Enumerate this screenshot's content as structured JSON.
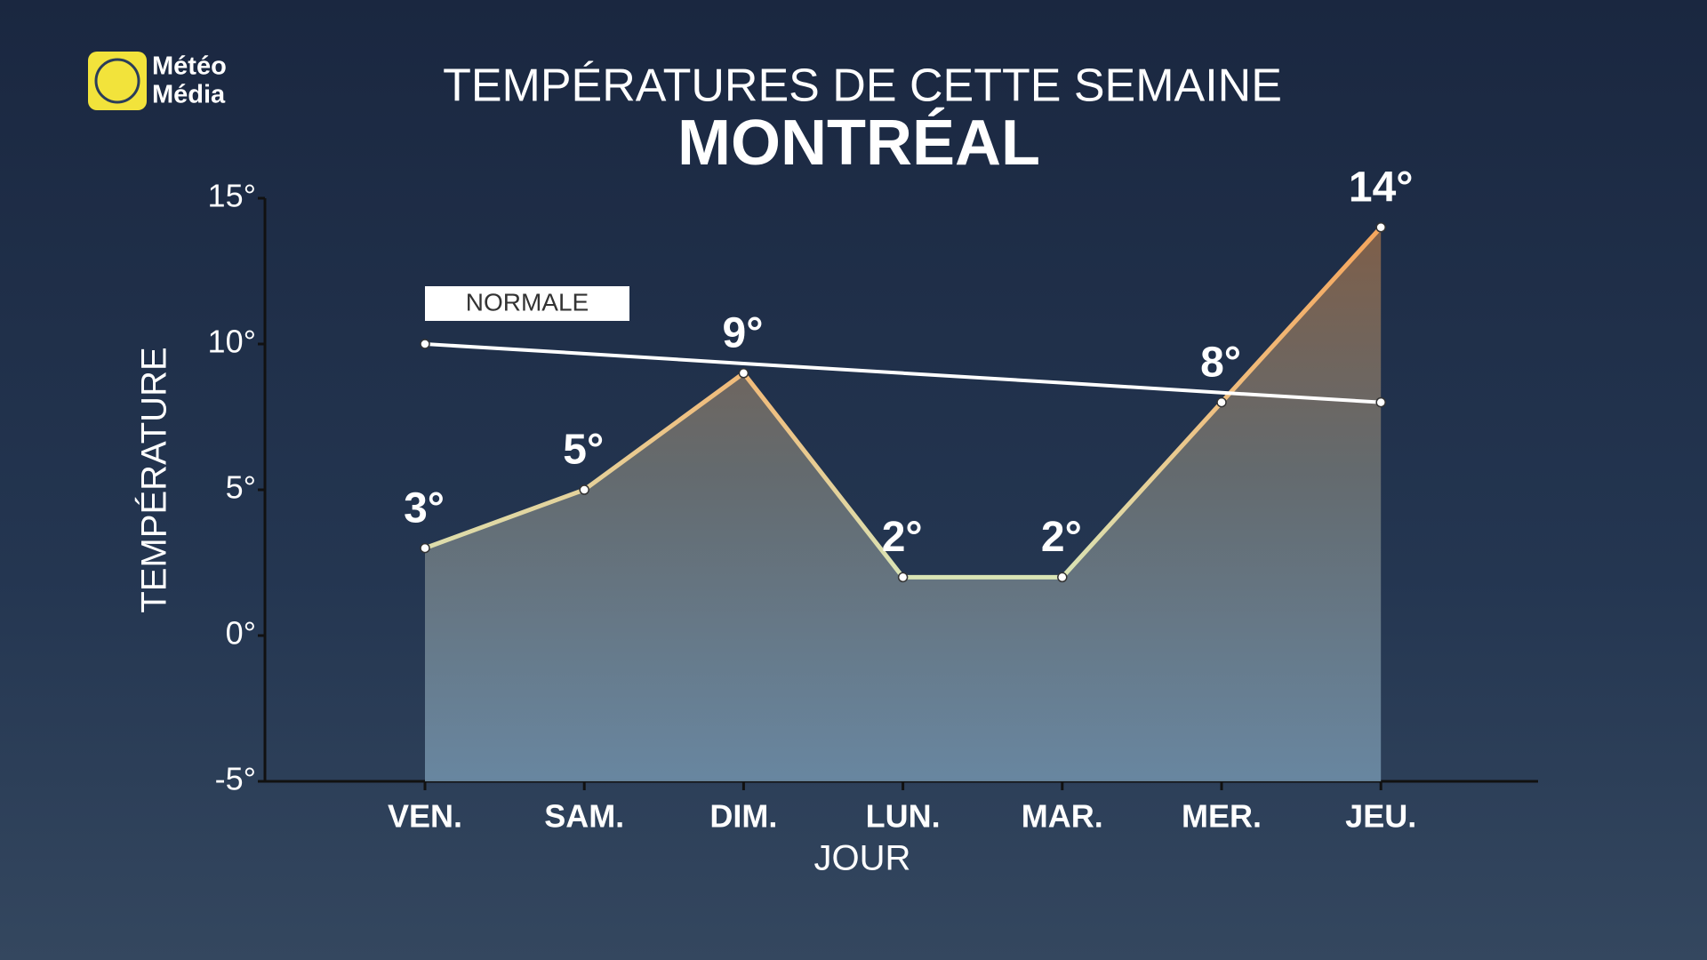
{
  "logo": {
    "lines": [
      "Météo",
      "Média"
    ]
  },
  "chart_data": {
    "type": "line",
    "title": "TEMPÉRATURES DE CETTE SEMAINE",
    "subtitle": "MONTRÉAL",
    "x_label": "JOUR",
    "y_label": "TEMPÉRATURE",
    "categories": [
      "VEN.",
      "SAM.",
      "DIM.",
      "LUN.",
      "MAR.",
      "MER.",
      "JEU."
    ],
    "series": [
      {
        "values": [
          3,
          5,
          9,
          2,
          2,
          8,
          14
        ],
        "value_labels": [
          "3°",
          "5°",
          "9°",
          "2°",
          "2°",
          "8°",
          "14°"
        ],
        "color": "#f0a860"
      },
      {
        "name": "NORMALE",
        "values": [
          10,
          9.67,
          9.33,
          9,
          8.67,
          8.33,
          8
        ],
        "color": "#ffffff"
      }
    ],
    "ylim": [
      -5,
      15
    ],
    "yticks": [
      {
        "value": -5,
        "label": "-5°"
      },
      {
        "value": 0,
        "label": "0°"
      },
      {
        "value": 5,
        "label": "5°"
      },
      {
        "value": 10,
        "label": "10°"
      },
      {
        "value": 15,
        "label": "15°"
      }
    ],
    "grid": false
  }
}
